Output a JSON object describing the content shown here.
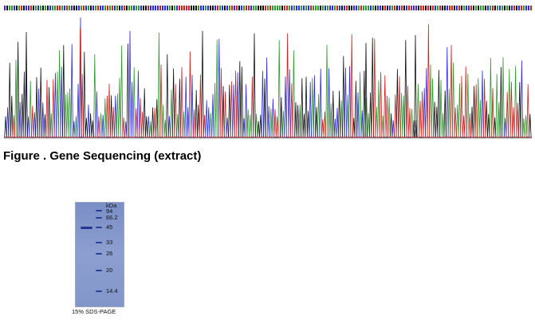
{
  "figure": {
    "caption": "Figure . Gene Sequencing (extract)"
  },
  "chromatogram": {
    "trace_colors": {
      "A": "#2e9a2e",
      "C": "#2a2ae0",
      "G": "#111111",
      "T": "#d02020"
    }
  },
  "gel": {
    "unit_label": "kDa",
    "markers": [
      "94",
      "66.2",
      "45",
      "33",
      "26",
      "20",
      "14.4"
    ],
    "caption": "15% SDS-PAGE",
    "band_color": "#2a3f9a"
  }
}
